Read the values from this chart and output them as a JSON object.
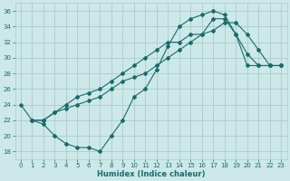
{
  "xlabel": "Humidex (Indice chaleur)",
  "xlim": [
    -0.5,
    23.5
  ],
  "ylim": [
    17,
    37
  ],
  "yticks": [
    18,
    20,
    22,
    24,
    26,
    28,
    30,
    32,
    34,
    36
  ],
  "xticks": [
    0,
    1,
    2,
    3,
    4,
    5,
    6,
    7,
    8,
    9,
    10,
    11,
    12,
    13,
    14,
    15,
    16,
    17,
    18,
    19,
    20,
    21,
    22,
    23
  ],
  "bg_color": "#cce8e8",
  "grid_color": "#aacccc",
  "line_color": "#1a6b6b",
  "curve1_x": [
    0,
    1,
    2,
    3,
    4,
    5,
    6,
    7,
    8,
    9,
    10,
    11,
    12,
    13,
    14,
    15,
    16,
    17,
    18,
    19,
    20,
    21,
    22,
    23
  ],
  "curve1_y": [
    24,
    22,
    21.5,
    20,
    19,
    18.5,
    18.5,
    18,
    20,
    22,
    25,
    26,
    28.5,
    31.5,
    34,
    35,
    35.5,
    36,
    35.5,
    33,
    30.5,
    29,
    29,
    29
  ],
  "curve2_x": [
    1,
    2,
    3,
    4,
    5,
    6,
    7,
    8,
    9,
    10,
    11,
    12,
    13,
    14,
    15,
    16,
    17,
    18,
    19,
    20,
    21,
    22,
    23
  ],
  "curve2_y": [
    22,
    22,
    23,
    23.5,
    24,
    24.5,
    25,
    26,
    27,
    27.5,
    28,
    29,
    30,
    31,
    32,
    33,
    33.5,
    34.5,
    34.5,
    33,
    31,
    29,
    29
  ],
  "curve3_x": [
    1,
    2,
    3,
    4,
    5,
    6,
    7,
    8,
    9,
    10,
    11,
    12,
    13,
    14,
    15,
    16,
    17,
    18,
    19,
    20,
    21,
    22,
    23
  ],
  "curve3_y": [
    22,
    22,
    23,
    24,
    25,
    25.5,
    26,
    27,
    28,
    29,
    30,
    31,
    32,
    32,
    33,
    33,
    35,
    35,
    33,
    29,
    29,
    29,
    29
  ]
}
